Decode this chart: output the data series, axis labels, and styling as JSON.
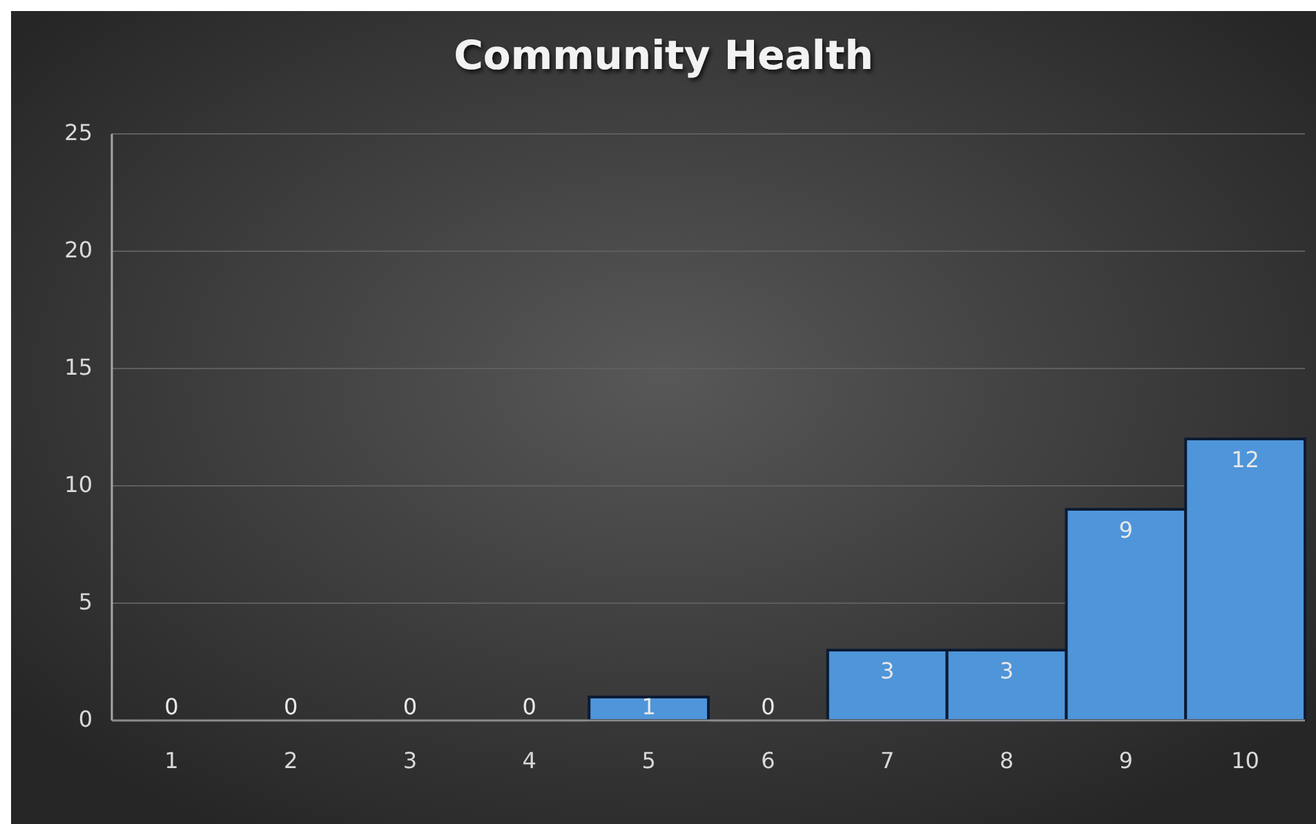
{
  "chart_data": {
    "type": "bar",
    "title": "Community Health",
    "categories": [
      "1",
      "2",
      "3",
      "4",
      "5",
      "6",
      "7",
      "8",
      "9",
      "10"
    ],
    "values": [
      0,
      0,
      0,
      0,
      1,
      0,
      3,
      3,
      9,
      12
    ],
    "color": "#4f95d9",
    "ylim": [
      0,
      25
    ],
    "yticks": [
      0,
      5,
      10,
      15,
      20,
      25
    ],
    "grid": "y",
    "data_labels": true
  }
}
